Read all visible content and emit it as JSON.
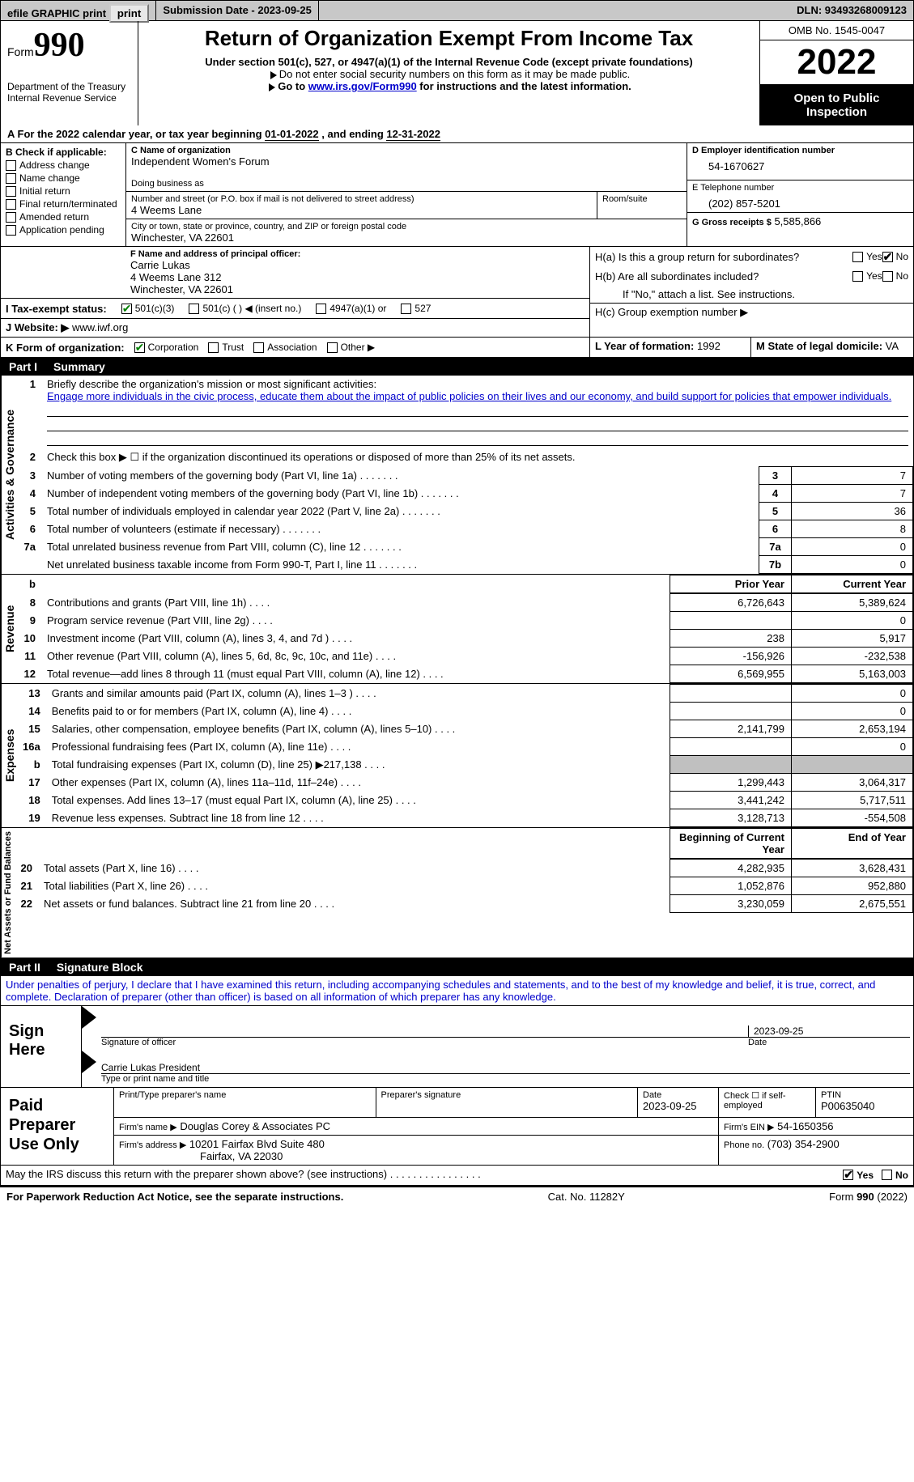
{
  "topbar": {
    "efile": "efile GRAPHIC print",
    "submission": "Submission Date - 2023-09-25",
    "dln": "DLN: 93493268009123"
  },
  "header": {
    "form_label": "Form",
    "form_num": "990",
    "dept": "Department of the Treasury",
    "irs": "Internal Revenue Service",
    "title": "Return of Organization Exempt From Income Tax",
    "subtitle": "Under section 501(c), 527, or 4947(a)(1) of the Internal Revenue Code (except private foundations)",
    "note1": "Do not enter social security numbers on this form as it may be made public.",
    "note2_pre": "Go to ",
    "note2_link": "www.irs.gov/Form990",
    "note2_post": " for instructions and the latest information.",
    "omb": "OMB No. 1545-0047",
    "year": "2022",
    "inspection": "Open to Public Inspection"
  },
  "taxyear": {
    "label_a": "A For the 2022 calendar year, or tax year beginning ",
    "begin": "01-01-2022",
    "mid": " , and ending ",
    "end": "12-31-2022"
  },
  "sectionB": {
    "label": "B Check if applicable:",
    "items": [
      "Address change",
      "Name change",
      "Initial return",
      "Final return/terminated",
      "Amended return",
      "Application pending"
    ]
  },
  "sectionC": {
    "name_label": "C Name of organization",
    "name": "Independent Women's Forum",
    "dba_label": "Doing business as",
    "dba": "",
    "street_label": "Number and street (or P.O. box if mail is not delivered to street address)",
    "room_label": "Room/suite",
    "street": "4 Weems Lane",
    "city_label": "City or town, state or province, country, and ZIP or foreign postal code",
    "city": "Winchester, VA  22601"
  },
  "sectionD": {
    "label": "D Employer identification number",
    "value": "54-1670627"
  },
  "sectionE": {
    "label": "E Telephone number",
    "value": "(202) 857-5201"
  },
  "sectionG": {
    "label": "G Gross receipts $",
    "value": "5,585,866"
  },
  "sectionF": {
    "label": "F Name and address of principal officer:",
    "name": "Carrie Lukas",
    "addr1": "4 Weems Lane 312",
    "addr2": "Winchester, VA  22601"
  },
  "sectionH": {
    "ha": "H(a)  Is this a group return for subordinates?",
    "hb": "H(b)  Are all subordinates included?",
    "hb_note": "If \"No,\" attach a list. See instructions.",
    "hc": "H(c)  Group exemption number ▶",
    "yes": "Yes",
    "no": "No"
  },
  "sectionI": {
    "label": "I   Tax-exempt status:",
    "opt1": "501(c)(3)",
    "opt2": "501(c) (  ) ◀ (insert no.)",
    "opt3": "4947(a)(1) or",
    "opt4": "527"
  },
  "sectionJ": {
    "label": "J   Website: ▶",
    "value": "www.iwf.org"
  },
  "sectionK": {
    "label": "K Form of organization:",
    "opts": [
      "Corporation",
      "Trust",
      "Association",
      "Other ▶"
    ]
  },
  "sectionL": {
    "label": "L Year of formation:",
    "value": "1992"
  },
  "sectionM": {
    "label": "M State of legal domicile:",
    "value": "VA"
  },
  "part1": {
    "header": "Part I",
    "title": "Summary",
    "vlabel1": "Activities & Governance",
    "vlabel2": "Revenue",
    "vlabel3": "Expenses",
    "vlabel4": "Net Assets or Fund Balances",
    "line1_label": "Briefly describe the organization's mission or most significant activities:",
    "line1_text": "Engage more individuals in the civic process, educate them about the impact of public policies on their lives and our economy, and build support for policies that empower individuals.",
    "line2": "Check this box ▶ ☐  if the organization discontinued its operations or disposed of more than 25% of its net assets.",
    "rows_gov": [
      {
        "n": "3",
        "d": "Number of voting members of the governing body (Part VI, line 1a)",
        "b": "3",
        "v": "7"
      },
      {
        "n": "4",
        "d": "Number of independent voting members of the governing body (Part VI, line 1b)",
        "b": "4",
        "v": "7"
      },
      {
        "n": "5",
        "d": "Total number of individuals employed in calendar year 2022 (Part V, line 2a)",
        "b": "5",
        "v": "36"
      },
      {
        "n": "6",
        "d": "Total number of volunteers (estimate if necessary)",
        "b": "6",
        "v": "8"
      },
      {
        "n": "7a",
        "d": "Total unrelated business revenue from Part VIII, column (C), line 12",
        "b": "7a",
        "v": "0"
      },
      {
        "n": "",
        "d": "Net unrelated business taxable income from Form 990-T, Part I, line 11",
        "b": "7b",
        "v": "0"
      }
    ],
    "col_prior": "Prior Year",
    "col_current": "Current Year",
    "rows_rev": [
      {
        "n": "8",
        "d": "Contributions and grants (Part VIII, line 1h)",
        "p": "6,726,643",
        "c": "5,389,624"
      },
      {
        "n": "9",
        "d": "Program service revenue (Part VIII, line 2g)",
        "p": "",
        "c": "0"
      },
      {
        "n": "10",
        "d": "Investment income (Part VIII, column (A), lines 3, 4, and 7d )",
        "p": "238",
        "c": "5,917"
      },
      {
        "n": "11",
        "d": "Other revenue (Part VIII, column (A), lines 5, 6d, 8c, 9c, 10c, and 11e)",
        "p": "-156,926",
        "c": "-232,538"
      },
      {
        "n": "12",
        "d": "Total revenue—add lines 8 through 11 (must equal Part VIII, column (A), line 12)",
        "p": "6,569,955",
        "c": "5,163,003"
      }
    ],
    "rows_exp": [
      {
        "n": "13",
        "d": "Grants and similar amounts paid (Part IX, column (A), lines 1–3 )",
        "p": "",
        "c": "0"
      },
      {
        "n": "14",
        "d": "Benefits paid to or for members (Part IX, column (A), line 4)",
        "p": "",
        "c": "0"
      },
      {
        "n": "15",
        "d": "Salaries, other compensation, employee benefits (Part IX, column (A), lines 5–10)",
        "p": "2,141,799",
        "c": "2,653,194"
      },
      {
        "n": "16a",
        "d": "Professional fundraising fees (Part IX, column (A), line 11e)",
        "p": "",
        "c": "0"
      },
      {
        "n": "b",
        "d": "Total fundraising expenses (Part IX, column (D), line 25) ▶217,138",
        "p": "grey",
        "c": "grey"
      },
      {
        "n": "17",
        "d": "Other expenses (Part IX, column (A), lines 11a–11d, 11f–24e)",
        "p": "1,299,443",
        "c": "3,064,317"
      },
      {
        "n": "18",
        "d": "Total expenses. Add lines 13–17 (must equal Part IX, column (A), line 25)",
        "p": "3,441,242",
        "c": "5,717,511"
      },
      {
        "n": "19",
        "d": "Revenue less expenses. Subtract line 18 from line 12",
        "p": "3,128,713",
        "c": "-554,508"
      }
    ],
    "col_begin": "Beginning of Current Year",
    "col_end": "End of Year",
    "rows_net": [
      {
        "n": "20",
        "d": "Total assets (Part X, line 16)",
        "p": "4,282,935",
        "c": "3,628,431"
      },
      {
        "n": "21",
        "d": "Total liabilities (Part X, line 26)",
        "p": "1,052,876",
        "c": "952,880"
      },
      {
        "n": "22",
        "d": "Net assets or fund balances. Subtract line 21 from line 20",
        "p": "3,230,059",
        "c": "2,675,551"
      }
    ]
  },
  "part2": {
    "header": "Part II",
    "title": "Signature Block",
    "declaration": "Under penalties of perjury, I declare that I have examined this return, including accompanying schedules and statements, and to the best of my knowledge and belief, it is true, correct, and complete. Declaration of preparer (other than officer) is based on all information of which preparer has any knowledge.",
    "sign_here": "Sign Here",
    "sig_officer": "Signature of officer",
    "sig_date": "2023-09-25",
    "date_label": "Date",
    "officer_name": "Carrie Lukas  President",
    "type_name": "Type or print name and title",
    "paid_prep": "Paid Preparer Use Only",
    "print_name_label": "Print/Type preparer's name",
    "print_name": "",
    "prep_sig_label": "Preparer's signature",
    "prep_date_label": "Date",
    "prep_date": "2023-09-25",
    "check_self": "Check ☐ if self-employed",
    "ptin_label": "PTIN",
    "ptin": "P00635040",
    "firm_name_label": "Firm's name    ▶",
    "firm_name": "Douglas Corey & Associates PC",
    "firm_ein_label": "Firm's EIN ▶",
    "firm_ein": "54-1650356",
    "firm_addr_label": "Firm's address ▶",
    "firm_addr1": "10201 Fairfax Blvd Suite 480",
    "firm_addr2": "Fairfax, VA  22030",
    "phone_label": "Phone no.",
    "phone": "(703) 354-2900",
    "discuss": "May the IRS discuss this return with the preparer shown above? (see instructions)",
    "yes": "Yes",
    "no": "No"
  },
  "footer": {
    "left": "For Paperwork Reduction Act Notice, see the separate instructions.",
    "mid": "Cat. No. 11282Y",
    "right": "Form 990 (2022)"
  }
}
